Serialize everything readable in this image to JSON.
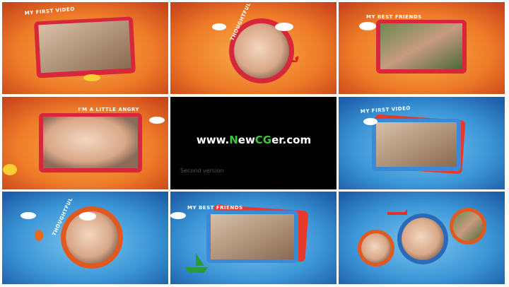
{
  "captions": [
    "MY FIRST VIDEO",
    "THOUGHTFUL",
    "MY BEST FRIENDS",
    "I'M A LITTLE ANGRY",
    "MY FIRST VIDEO",
    "THOUGHTFUL",
    "MY BEST FRIENDS"
  ],
  "center": {
    "site": [
      "www.",
      "N",
      "ew",
      "CG",
      "er.com"
    ],
    "note": "Second version"
  }
}
